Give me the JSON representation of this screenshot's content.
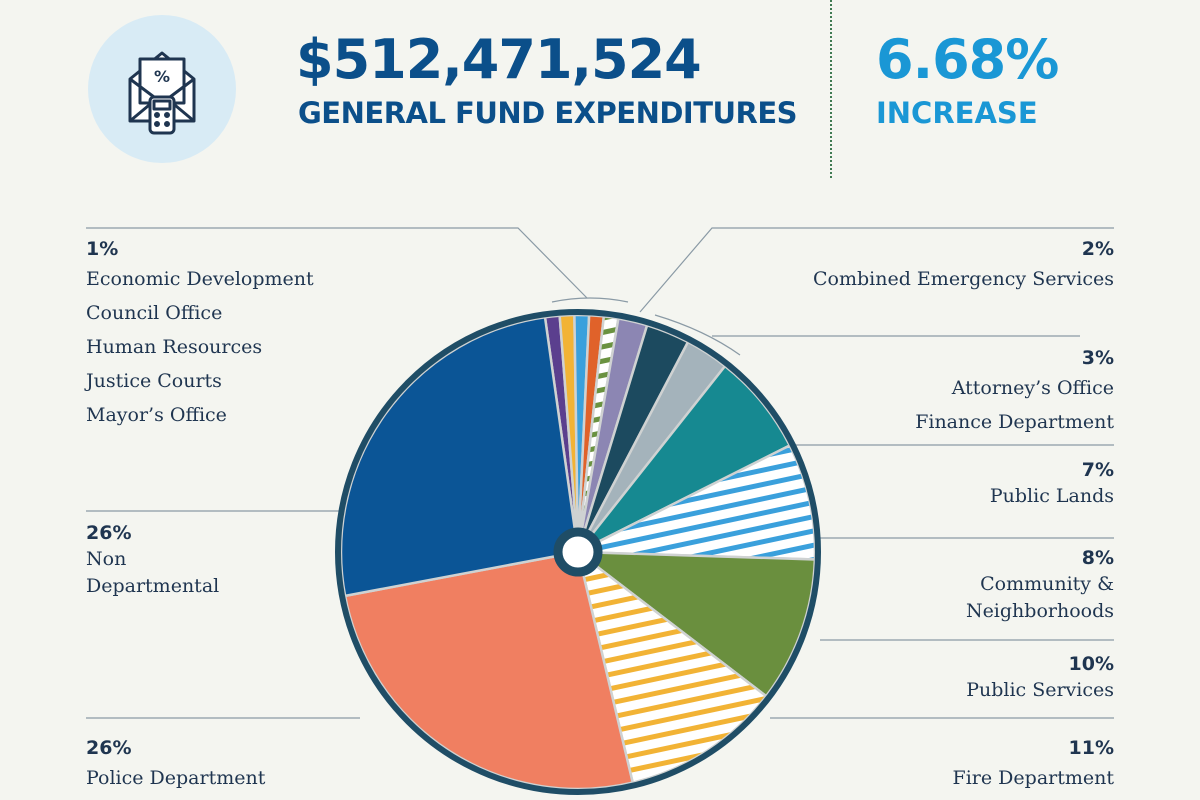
{
  "header": {
    "icon": "envelope-percent-calculator-icon",
    "amount": "$512,471,524",
    "amount_label": "GENERAL FUND EXPENDITURES",
    "change_value": "6.68%",
    "change_label": "INCREASE",
    "colors": {
      "primary": "#0b4f8a",
      "accent": "#1a97d5",
      "icon_bg": "#d8ebf5"
    }
  },
  "labels": {
    "small_depts": {
      "pct": "1%",
      "names": [
        "Economic Development",
        "Council Office",
        "Human Resources",
        "Justice Courts",
        "Mayor’s Office"
      ]
    },
    "non_dept": {
      "pct": "26%",
      "names": [
        "Non",
        "Departmental"
      ]
    },
    "police": {
      "pct": "26%",
      "names": [
        "Police Department"
      ]
    },
    "ces": {
      "pct": "2%",
      "names": [
        "Combined Emergency Services"
      ]
    },
    "attorney_finance": {
      "pct": "3%",
      "names": [
        "Attorney’s Office",
        "Finance Department"
      ]
    },
    "public_lands": {
      "pct": "7%",
      "names": [
        "Public Lands"
      ]
    },
    "community": {
      "pct": "8%",
      "names": [
        "Community &",
        "Neighborhoods"
      ]
    },
    "public_services": {
      "pct": "10%",
      "names": [
        "Public Services"
      ]
    },
    "fire": {
      "pct": "11%",
      "names": [
        "Fire Department"
      ]
    }
  },
  "chart_data": {
    "type": "pie",
    "unit": "%",
    "slices": [
      {
        "name": "Economic Development",
        "value": 1,
        "color": "#5b3f8e",
        "pattern": "solid"
      },
      {
        "name": "Council Office",
        "value": 1,
        "color": "#f2b335",
        "pattern": "solid"
      },
      {
        "name": "Human Resources",
        "value": 1,
        "color": "#3aa0dc",
        "pattern": "solid"
      },
      {
        "name": "Justice Courts",
        "value": 1,
        "color": "#e0622a",
        "pattern": "solid"
      },
      {
        "name": "Mayor’s Office",
        "value": 1,
        "color": "#6a9240",
        "pattern": "stripes"
      },
      {
        "name": "Combined Emergency Services",
        "value": 2,
        "color": "#8c86b3",
        "pattern": "solid"
      },
      {
        "name": "Attorney’s Office",
        "value": 3,
        "color": "#1c4a5f",
        "pattern": "solid"
      },
      {
        "name": "Finance Department",
        "value": 3,
        "color": "#a4b3bb",
        "pattern": "solid"
      },
      {
        "name": "Public Lands",
        "value": 7,
        "color": "#168991",
        "pattern": "solid"
      },
      {
        "name": "Community & Neighborhoods",
        "value": 8,
        "color": "#3aa0dc",
        "pattern": "stripes"
      },
      {
        "name": "Public Services",
        "value": 10,
        "color": "#6a8f3e",
        "pattern": "solid"
      },
      {
        "name": "Fire Department",
        "value": 11,
        "color": "#f2b335",
        "pattern": "stripes"
      },
      {
        "name": "Police Department",
        "value": 26,
        "color": "#f07f61",
        "pattern": "solid"
      },
      {
        "name": "Non Departmental",
        "value": 26,
        "color": "#0b5596",
        "pattern": "solid"
      }
    ],
    "start_angle_deg": -8,
    "rim_color": "#1f4d66",
    "separator_color": "#cfd2d2",
    "hub_color": "#1f4d66"
  }
}
